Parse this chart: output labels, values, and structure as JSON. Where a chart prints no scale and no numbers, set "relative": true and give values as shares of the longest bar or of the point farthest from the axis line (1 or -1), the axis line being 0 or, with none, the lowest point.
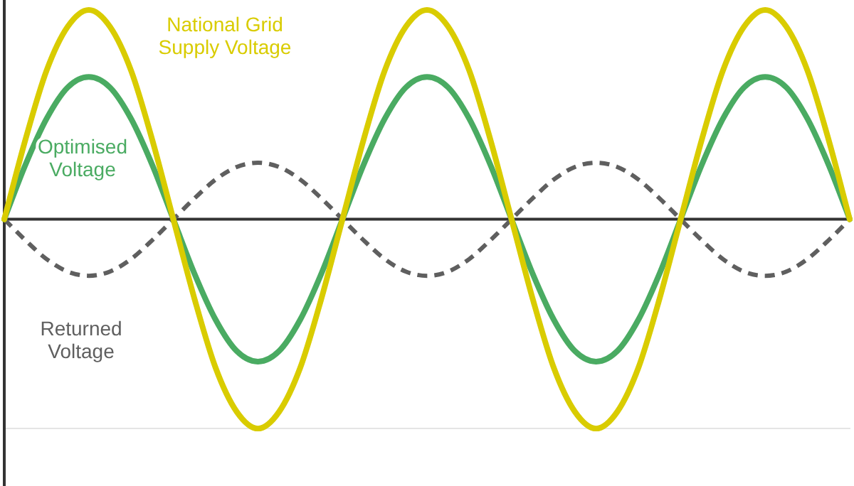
{
  "chart_data": {
    "type": "line",
    "relative": true,
    "legend": false,
    "marker": "none",
    "categories": [
      null,
      null,
      null,
      null,
      null,
      null,
      null,
      null,
      null,
      null,
      null,
      null,
      null,
      null,
      null,
      null,
      null,
      null,
      null,
      null,
      null,
      null,
      null,
      null,
      null,
      null,
      null,
      null,
      null,
      null,
      null,
      null,
      null,
      null,
      null,
      null,
      null,
      null,
      null,
      null,
      null
    ],
    "series": [
      {
        "name": "National Grid Supply Voltage",
        "color": "#d9cc00",
        "line_style": "solid",
        "values": [
          0,
          0.38,
          0.71,
          0.92,
          1,
          0.92,
          0.71,
          0.38,
          0,
          -0.38,
          -0.71,
          -0.92,
          -1,
          -0.92,
          -0.71,
          -0.38,
          0,
          0.38,
          0.71,
          0.92,
          1,
          0.92,
          0.71,
          0.38,
          0,
          -0.38,
          -0.71,
          -0.92,
          -1,
          -0.92,
          -0.71,
          -0.38,
          0,
          0.38,
          0.71,
          0.92,
          1,
          0.92,
          0.71,
          0.38,
          0
        ]
      },
      {
        "name": "Optimised Voltage",
        "color": "#4aab62",
        "line_style": "solid",
        "values": [
          0,
          0.26,
          0.48,
          0.63,
          0.68,
          0.63,
          0.48,
          0.26,
          0,
          -0.26,
          -0.48,
          -0.63,
          -0.68,
          -0.63,
          -0.48,
          -0.26,
          0,
          0.26,
          0.48,
          0.63,
          0.68,
          0.63,
          0.48,
          0.26,
          0,
          -0.26,
          -0.48,
          -0.63,
          -0.68,
          -0.63,
          -0.48,
          -0.26,
          0,
          0.26,
          0.48,
          0.63,
          0.68,
          0.63,
          0.48,
          0.26,
          0
        ]
      },
      {
        "name": "Returned Voltage",
        "color": "#5f5f5f",
        "line_style": "dashed",
        "values": [
          0,
          -0.1,
          -0.19,
          -0.25,
          -0.27,
          -0.25,
          -0.19,
          -0.1,
          0,
          0.1,
          0.19,
          0.25,
          0.27,
          0.25,
          0.19,
          0.1,
          0,
          -0.1,
          -0.19,
          -0.25,
          -0.27,
          -0.25,
          -0.19,
          -0.1,
          0,
          0.1,
          0.19,
          0.25,
          0.27,
          0.25,
          0.19,
          0.1,
          0,
          -0.1,
          -0.19,
          -0.25,
          -0.27,
          -0.25,
          -0.19,
          -0.1,
          0
        ]
      }
    ]
  }
}
